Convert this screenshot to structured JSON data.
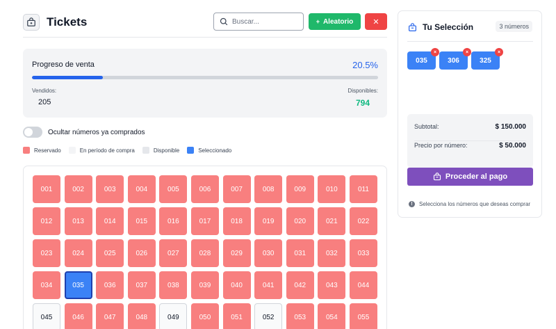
{
  "header": {
    "title": "Tickets",
    "search_placeholder": "Buscar...",
    "random_label": "Aleatorio",
    "clear_label": "✕"
  },
  "progress": {
    "label": "Progreso de venta",
    "percent_text": "20.5%",
    "percent_value": 20.5,
    "sold_label": "Vendidos:",
    "sold_value": "205",
    "available_label": "Disponibles:",
    "available_value": "794"
  },
  "toggle": {
    "label": "Ocultar números ya comprados",
    "on": false
  },
  "legend": [
    {
      "label": "Reservado",
      "status": "reserved",
      "color": "#f87f7f"
    },
    {
      "label": "En período de compra",
      "status": "pending",
      "color": "#f3f4f6"
    },
    {
      "label": "Disponible",
      "status": "available",
      "color": "#e5e7eb"
    },
    {
      "label": "Seleccionado",
      "status": "selected",
      "color": "#3b82f6"
    }
  ],
  "tickets": [
    {
      "n": "001",
      "s": "reserved"
    },
    {
      "n": "002",
      "s": "reserved"
    },
    {
      "n": "003",
      "s": "reserved"
    },
    {
      "n": "004",
      "s": "reserved"
    },
    {
      "n": "005",
      "s": "reserved"
    },
    {
      "n": "006",
      "s": "reserved"
    },
    {
      "n": "007",
      "s": "reserved"
    },
    {
      "n": "008",
      "s": "reserved"
    },
    {
      "n": "009",
      "s": "reserved"
    },
    {
      "n": "010",
      "s": "reserved"
    },
    {
      "n": "011",
      "s": "reserved"
    },
    {
      "n": "012",
      "s": "reserved"
    },
    {
      "n": "013",
      "s": "reserved"
    },
    {
      "n": "014",
      "s": "reserved"
    },
    {
      "n": "015",
      "s": "reserved"
    },
    {
      "n": "016",
      "s": "reserved"
    },
    {
      "n": "017",
      "s": "reserved"
    },
    {
      "n": "018",
      "s": "reserved"
    },
    {
      "n": "019",
      "s": "reserved"
    },
    {
      "n": "020",
      "s": "reserved"
    },
    {
      "n": "021",
      "s": "reserved"
    },
    {
      "n": "022",
      "s": "reserved"
    },
    {
      "n": "023",
      "s": "reserved"
    },
    {
      "n": "024",
      "s": "reserved"
    },
    {
      "n": "025",
      "s": "reserved"
    },
    {
      "n": "026",
      "s": "reserved"
    },
    {
      "n": "027",
      "s": "reserved"
    },
    {
      "n": "028",
      "s": "reserved"
    },
    {
      "n": "029",
      "s": "reserved"
    },
    {
      "n": "030",
      "s": "reserved"
    },
    {
      "n": "031",
      "s": "reserved"
    },
    {
      "n": "032",
      "s": "reserved"
    },
    {
      "n": "033",
      "s": "reserved"
    },
    {
      "n": "034",
      "s": "reserved"
    },
    {
      "n": "035",
      "s": "selected"
    },
    {
      "n": "036",
      "s": "reserved"
    },
    {
      "n": "037",
      "s": "reserved"
    },
    {
      "n": "038",
      "s": "reserved"
    },
    {
      "n": "039",
      "s": "reserved"
    },
    {
      "n": "040",
      "s": "reserved"
    },
    {
      "n": "041",
      "s": "reserved"
    },
    {
      "n": "042",
      "s": "reserved"
    },
    {
      "n": "043",
      "s": "reserved"
    },
    {
      "n": "044",
      "s": "reserved"
    },
    {
      "n": "045",
      "s": "available"
    },
    {
      "n": "046",
      "s": "reserved"
    },
    {
      "n": "047",
      "s": "reserved"
    },
    {
      "n": "048",
      "s": "reserved"
    },
    {
      "n": "049",
      "s": "available"
    },
    {
      "n": "050",
      "s": "reserved"
    },
    {
      "n": "051",
      "s": "reserved"
    },
    {
      "n": "052",
      "s": "available"
    },
    {
      "n": "053",
      "s": "reserved"
    },
    {
      "n": "054",
      "s": "reserved"
    },
    {
      "n": "055",
      "s": "reserved"
    }
  ],
  "selection": {
    "title": "Tu Selección",
    "count_text": "3 números",
    "chips": [
      "035",
      "306",
      "325"
    ],
    "remove_glyph": "×",
    "subtotal_label": "Subtotal:",
    "subtotal_value": "$ 150.000",
    "price_label": "Precio por número:",
    "price_value": "$ 50.000",
    "pay_label": "Proceder al pago",
    "hint": "Selecciona los números que deseas comprar"
  },
  "icons": {
    "header_logo": "ticket-bag-icon",
    "search": "search-icon",
    "random": "plus-icon",
    "clear": "close-icon",
    "selection": "bag-icon",
    "pay": "bag-icon",
    "hint": "info-icon"
  },
  "colors": {
    "primary_blue": "#2563eb",
    "green": "#1fb86a",
    "red": "#ef4444",
    "reserved": "#f87f7f",
    "purple": "#7e4fbd"
  }
}
